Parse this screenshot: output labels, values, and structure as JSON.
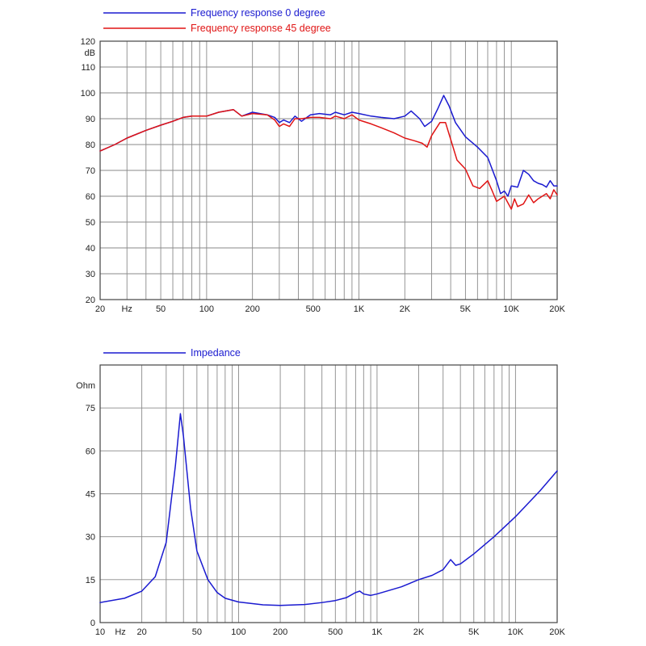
{
  "chart_data": [
    {
      "type": "line",
      "x_scale": "log",
      "y_unit_label": "dB",
      "xlim": [
        20,
        20000
      ],
      "ylim": [
        20,
        120
      ],
      "grid": true,
      "legend_position": "top-left",
      "x_tick_labels": [
        {
          "x": 20,
          "label": "20"
        },
        {
          "x": 30,
          "label": "Hz"
        },
        {
          "x": 50,
          "label": "50"
        },
        {
          "x": 100,
          "label": "100"
        },
        {
          "x": 200,
          "label": "200"
        },
        {
          "x": 500,
          "label": "500"
        },
        {
          "x": 1000,
          "label": "1K"
        },
        {
          "x": 2000,
          "label": "2K"
        },
        {
          "x": 5000,
          "label": "5K"
        },
        {
          "x": 10000,
          "label": "10K"
        },
        {
          "x": 20000,
          "label": "20K"
        }
      ],
      "y_ticks": [
        20,
        30,
        40,
        50,
        60,
        70,
        80,
        90,
        100,
        110,
        120
      ],
      "series": [
        {
          "name": "Frequency response 0 degree",
          "color": "#1a1ad0",
          "points": [
            [
              20,
              77.5
            ],
            [
              25,
              80
            ],
            [
              30,
              82.5
            ],
            [
              40,
              85.5
            ],
            [
              50,
              87.5
            ],
            [
              60,
              89
            ],
            [
              70,
              90.5
            ],
            [
              80,
              91
            ],
            [
              100,
              91
            ],
            [
              120,
              92.5
            ],
            [
              150,
              93.5
            ],
            [
              170,
              91
            ],
            [
              200,
              92.5
            ],
            [
              250,
              91.5
            ],
            [
              280,
              90.5
            ],
            [
              300,
              88.5
            ],
            [
              320,
              89.5
            ],
            [
              350,
              88.5
            ],
            [
              380,
              91
            ],
            [
              420,
              89
            ],
            [
              480,
              91.5
            ],
            [
              550,
              92
            ],
            [
              650,
              91.5
            ],
            [
              700,
              92.5
            ],
            [
              800,
              91.5
            ],
            [
              900,
              92.5
            ],
            [
              1000,
              92
            ],
            [
              1200,
              91
            ],
            [
              1400,
              90.5
            ],
            [
              1700,
              90
            ],
            [
              2000,
              91
            ],
            [
              2200,
              93
            ],
            [
              2500,
              90
            ],
            [
              2700,
              87
            ],
            [
              3000,
              89
            ],
            [
              3300,
              94
            ],
            [
              3600,
              99
            ],
            [
              3900,
              95
            ],
            [
              4300,
              88.5
            ],
            [
              5000,
              83
            ],
            [
              6000,
              79
            ],
            [
              7000,
              75
            ],
            [
              8000,
              66
            ],
            [
              8500,
              61
            ],
            [
              9000,
              62
            ],
            [
              9500,
              60
            ],
            [
              10000,
              64
            ],
            [
              11000,
              63.5
            ],
            [
              12000,
              70
            ],
            [
              13000,
              68.5
            ],
            [
              14000,
              66
            ],
            [
              15000,
              65
            ],
            [
              16000,
              64.5
            ],
            [
              17000,
              63.5
            ],
            [
              18000,
              66
            ],
            [
              19000,
              64
            ],
            [
              20000,
              64
            ]
          ]
        },
        {
          "name": "Frequency response 45 degree",
          "color": "#e01414",
          "points": [
            [
              20,
              77.5
            ],
            [
              25,
              80
            ],
            [
              30,
              82.5
            ],
            [
              40,
              85.5
            ],
            [
              50,
              87.5
            ],
            [
              60,
              89
            ],
            [
              70,
              90.5
            ],
            [
              80,
              91
            ],
            [
              100,
              91
            ],
            [
              120,
              92.5
            ],
            [
              150,
              93.5
            ],
            [
              170,
              91
            ],
            [
              200,
              92
            ],
            [
              250,
              91.5
            ],
            [
              280,
              89.5
            ],
            [
              300,
              87
            ],
            [
              320,
              88
            ],
            [
              350,
              87
            ],
            [
              380,
              90
            ],
            [
              420,
              90
            ],
            [
              480,
              90.5
            ],
            [
              550,
              90.5
            ],
            [
              650,
              90
            ],
            [
              700,
              91
            ],
            [
              800,
              90
            ],
            [
              900,
              91.5
            ],
            [
              1000,
              89.5
            ],
            [
              1200,
              88
            ],
            [
              1400,
              86.5
            ],
            [
              1700,
              84.5
            ],
            [
              2000,
              82.5
            ],
            [
              2300,
              81.5
            ],
            [
              2600,
              80.5
            ],
            [
              2800,
              79
            ],
            [
              3000,
              83.5
            ],
            [
              3400,
              88.5
            ],
            [
              3700,
              88.5
            ],
            [
              4000,
              82
            ],
            [
              4400,
              74
            ],
            [
              5000,
              70.5
            ],
            [
              5600,
              64
            ],
            [
              6200,
              63
            ],
            [
              7000,
              66
            ],
            [
              7500,
              62
            ],
            [
              8000,
              58
            ],
            [
              9000,
              60
            ],
            [
              10000,
              55
            ],
            [
              10500,
              59
            ],
            [
              11000,
              56
            ],
            [
              12000,
              57
            ],
            [
              13000,
              60.5
            ],
            [
              14000,
              57.5
            ],
            [
              15000,
              59
            ],
            [
              17000,
              61
            ],
            [
              18000,
              59
            ],
            [
              19000,
              62.5
            ],
            [
              20000,
              60.5
            ]
          ]
        }
      ]
    },
    {
      "type": "line",
      "x_scale": "log",
      "y_unit_label": "Ohm",
      "xlim": [
        10,
        20000
      ],
      "ylim": [
        0,
        90
      ],
      "grid": true,
      "legend_position": "top-left",
      "x_tick_labels": [
        {
          "x": 10,
          "label": "10"
        },
        {
          "x": 14,
          "label": "Hz"
        },
        {
          "x": 20,
          "label": "20"
        },
        {
          "x": 50,
          "label": "50"
        },
        {
          "x": 100,
          "label": "100"
        },
        {
          "x": 200,
          "label": "200"
        },
        {
          "x": 500,
          "label": "500"
        },
        {
          "x": 1000,
          "label": "1K"
        },
        {
          "x": 2000,
          "label": "2K"
        },
        {
          "x": 5000,
          "label": "5K"
        },
        {
          "x": 10000,
          "label": "10K"
        },
        {
          "x": 20000,
          "label": "20K"
        }
      ],
      "y_ticks": [
        0,
        15,
        30,
        45,
        60,
        75
      ],
      "series": [
        {
          "name": "Impedance",
          "color": "#1a1ad0",
          "points": [
            [
              10,
              7
            ],
            [
              15,
              8.5
            ],
            [
              20,
              11
            ],
            [
              25,
              16
            ],
            [
              30,
              28
            ],
            [
              35,
              55
            ],
            [
              38,
              73
            ],
            [
              40,
              65
            ],
            [
              45,
              40
            ],
            [
              50,
              25
            ],
            [
              60,
              15
            ],
            [
              70,
              10.5
            ],
            [
              80,
              8.5
            ],
            [
              100,
              7.2
            ],
            [
              150,
              6.2
            ],
            [
              200,
              6
            ],
            [
              300,
              6.3
            ],
            [
              400,
              7
            ],
            [
              500,
              7.7
            ],
            [
              600,
              8.7
            ],
            [
              700,
              10.5
            ],
            [
              750,
              11
            ],
            [
              800,
              10
            ],
            [
              900,
              9.5
            ],
            [
              1000,
              10
            ],
            [
              1500,
              12.5
            ],
            [
              2000,
              15
            ],
            [
              2500,
              16.5
            ],
            [
              3000,
              18.5
            ],
            [
              3400,
              22
            ],
            [
              3700,
              20
            ],
            [
              4000,
              20.5
            ],
            [
              5000,
              24
            ],
            [
              7000,
              30
            ],
            [
              10000,
              37
            ],
            [
              15000,
              46
            ],
            [
              20000,
              53
            ]
          ]
        }
      ]
    }
  ]
}
